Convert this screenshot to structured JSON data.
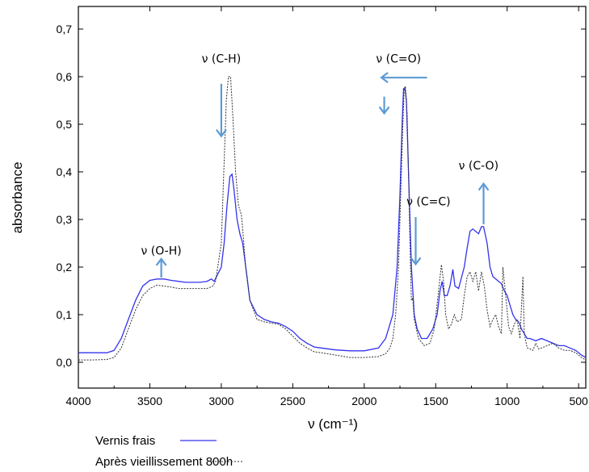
{
  "chart_data": {
    "type": "line",
    "xlabel": "ν (cm⁻¹)",
    "ylabel": "absorbance",
    "xlim": [
      4000,
      450
    ],
    "ylim": [
      -0.05,
      0.75
    ],
    "x_reversed": true,
    "x_ticks": [
      4000,
      3500,
      3000,
      2500,
      2000,
      1500,
      1000,
      500
    ],
    "x_tick_labels": [
      "4000",
      "3500",
      "3000",
      "2500",
      "2000",
      "1500",
      "1000",
      "500"
    ],
    "y_ticks": [
      0.0,
      0.1,
      0.2,
      0.3,
      0.4,
      0.5,
      0.6,
      0.7
    ],
    "y_tick_labels": [
      "0,0",
      "0,1",
      "0,2",
      "0,3",
      "0,4",
      "0,5",
      "0,6",
      "0,7"
    ],
    "grid": false,
    "legend_position": "bottom-left",
    "series": [
      {
        "name": "Vernis frais",
        "color": "#3333ee",
        "style": "solid",
        "points": [
          [
            4000,
            0.02
          ],
          [
            3900,
            0.02
          ],
          [
            3800,
            0.02
          ],
          [
            3750,
            0.025
          ],
          [
            3700,
            0.05
          ],
          [
            3650,
            0.09
          ],
          [
            3600,
            0.13
          ],
          [
            3550,
            0.16
          ],
          [
            3500,
            0.172
          ],
          [
            3450,
            0.175
          ],
          [
            3400,
            0.175
          ],
          [
            3350,
            0.172
          ],
          [
            3300,
            0.17
          ],
          [
            3250,
            0.168
          ],
          [
            3200,
            0.168
          ],
          [
            3150,
            0.168
          ],
          [
            3100,
            0.17
          ],
          [
            3070,
            0.175
          ],
          [
            3050,
            0.17
          ],
          [
            3000,
            0.2
          ],
          [
            2980,
            0.25
          ],
          [
            2960,
            0.33
          ],
          [
            2940,
            0.39
          ],
          [
            2925,
            0.395
          ],
          [
            2910,
            0.36
          ],
          [
            2890,
            0.3
          ],
          [
            2870,
            0.27
          ],
          [
            2850,
            0.25
          ],
          [
            2820,
            0.18
          ],
          [
            2800,
            0.13
          ],
          [
            2750,
            0.1
          ],
          [
            2700,
            0.09
          ],
          [
            2650,
            0.085
          ],
          [
            2600,
            0.082
          ],
          [
            2550,
            0.075
          ],
          [
            2500,
            0.065
          ],
          [
            2450,
            0.05
          ],
          [
            2400,
            0.04
          ],
          [
            2350,
            0.032
          ],
          [
            2300,
            0.03
          ],
          [
            2200,
            0.026
          ],
          [
            2100,
            0.024
          ],
          [
            2000,
            0.024
          ],
          [
            1900,
            0.03
          ],
          [
            1850,
            0.05
          ],
          [
            1800,
            0.1
          ],
          [
            1770,
            0.2
          ],
          [
            1750,
            0.35
          ],
          [
            1735,
            0.5
          ],
          [
            1725,
            0.575
          ],
          [
            1715,
            0.575
          ],
          [
            1705,
            0.55
          ],
          [
            1690,
            0.4
          ],
          [
            1670,
            0.2
          ],
          [
            1650,
            0.1
          ],
          [
            1630,
            0.07
          ],
          [
            1600,
            0.05
          ],
          [
            1560,
            0.05
          ],
          [
            1520,
            0.07
          ],
          [
            1490,
            0.1
          ],
          [
            1470,
            0.15
          ],
          [
            1455,
            0.17
          ],
          [
            1440,
            0.14
          ],
          [
            1420,
            0.14
          ],
          [
            1400,
            0.16
          ],
          [
            1380,
            0.195
          ],
          [
            1365,
            0.16
          ],
          [
            1340,
            0.155
          ],
          [
            1300,
            0.2
          ],
          [
            1280,
            0.24
          ],
          [
            1260,
            0.275
          ],
          [
            1240,
            0.28
          ],
          [
            1220,
            0.275
          ],
          [
            1200,
            0.27
          ],
          [
            1180,
            0.285
          ],
          [
            1165,
            0.285
          ],
          [
            1140,
            0.25
          ],
          [
            1120,
            0.2
          ],
          [
            1100,
            0.18
          ],
          [
            1080,
            0.175
          ],
          [
            1060,
            0.17
          ],
          [
            1040,
            0.165
          ],
          [
            1020,
            0.15
          ],
          [
            1000,
            0.14
          ],
          [
            980,
            0.12
          ],
          [
            960,
            0.1
          ],
          [
            940,
            0.09
          ],
          [
            920,
            0.085
          ],
          [
            900,
            0.07
          ],
          [
            880,
            0.06
          ],
          [
            860,
            0.05
          ],
          [
            840,
            0.05
          ],
          [
            800,
            0.045
          ],
          [
            760,
            0.05
          ],
          [
            720,
            0.045
          ],
          [
            680,
            0.04
          ],
          [
            640,
            0.035
          ],
          [
            600,
            0.035
          ],
          [
            560,
            0.03
          ],
          [
            520,
            0.025
          ],
          [
            480,
            0.015
          ],
          [
            450,
            0.01
          ]
        ]
      },
      {
        "name": "Après vieillissement 800h",
        "color": "#333333",
        "style": "dotted",
        "points": [
          [
            4000,
            0.005
          ],
          [
            3900,
            0.005
          ],
          [
            3800,
            0.006
          ],
          [
            3750,
            0.01
          ],
          [
            3700,
            0.03
          ],
          [
            3650,
            0.07
          ],
          [
            3600,
            0.11
          ],
          [
            3550,
            0.14
          ],
          [
            3500,
            0.155
          ],
          [
            3450,
            0.162
          ],
          [
            3400,
            0.16
          ],
          [
            3350,
            0.158
          ],
          [
            3300,
            0.155
          ],
          [
            3250,
            0.155
          ],
          [
            3200,
            0.155
          ],
          [
            3150,
            0.155
          ],
          [
            3100,
            0.155
          ],
          [
            3060,
            0.16
          ],
          [
            3040,
            0.17
          ],
          [
            3000,
            0.25
          ],
          [
            2980,
            0.42
          ],
          [
            2965,
            0.55
          ],
          [
            2950,
            0.6
          ],
          [
            2935,
            0.6
          ],
          [
            2920,
            0.52
          ],
          [
            2900,
            0.4
          ],
          [
            2880,
            0.33
          ],
          [
            2860,
            0.31
          ],
          [
            2850,
            0.28
          ],
          [
            2830,
            0.2
          ],
          [
            2800,
            0.13
          ],
          [
            2750,
            0.09
          ],
          [
            2700,
            0.085
          ],
          [
            2650,
            0.082
          ],
          [
            2600,
            0.08
          ],
          [
            2550,
            0.07
          ],
          [
            2500,
            0.055
          ],
          [
            2450,
            0.04
          ],
          [
            2400,
            0.03
          ],
          [
            2350,
            0.022
          ],
          [
            2300,
            0.02
          ],
          [
            2200,
            0.015
          ],
          [
            2100,
            0.01
          ],
          [
            2000,
            0.01
          ],
          [
            1900,
            0.012
          ],
          [
            1850,
            0.018
          ],
          [
            1820,
            0.03
          ],
          [
            1800,
            0.05
          ],
          [
            1780,
            0.1
          ],
          [
            1760,
            0.2
          ],
          [
            1745,
            0.35
          ],
          [
            1730,
            0.5
          ],
          [
            1720,
            0.575
          ],
          [
            1712,
            0.58
          ],
          [
            1700,
            0.52
          ],
          [
            1690,
            0.4
          ],
          [
            1680,
            0.25
          ],
          [
            1670,
            0.13
          ],
          [
            1660,
            0.135
          ],
          [
            1650,
            0.09
          ],
          [
            1620,
            0.05
          ],
          [
            1580,
            0.035
          ],
          [
            1540,
            0.04
          ],
          [
            1510,
            0.07
          ],
          [
            1480,
            0.15
          ],
          [
            1460,
            0.205
          ],
          [
            1445,
            0.17
          ],
          [
            1430,
            0.1
          ],
          [
            1410,
            0.07
          ],
          [
            1390,
            0.08
          ],
          [
            1370,
            0.1
          ],
          [
            1350,
            0.085
          ],
          [
            1320,
            0.09
          ],
          [
            1300,
            0.14
          ],
          [
            1280,
            0.18
          ],
          [
            1260,
            0.19
          ],
          [
            1240,
            0.17
          ],
          [
            1220,
            0.19
          ],
          [
            1200,
            0.15
          ],
          [
            1180,
            0.19
          ],
          [
            1160,
            0.16
          ],
          [
            1140,
            0.11
          ],
          [
            1120,
            0.075
          ],
          [
            1100,
            0.09
          ],
          [
            1080,
            0.1
          ],
          [
            1060,
            0.075
          ],
          [
            1040,
            0.06
          ],
          [
            1030,
            0.2
          ],
          [
            1010,
            0.14
          ],
          [
            990,
            0.075
          ],
          [
            970,
            0.06
          ],
          [
            950,
            0.08
          ],
          [
            930,
            0.09
          ],
          [
            910,
            0.05
          ],
          [
            890,
            0.18
          ],
          [
            880,
            0.06
          ],
          [
            860,
            0.03
          ],
          [
            840,
            0.028
          ],
          [
            820,
            0.025
          ],
          [
            800,
            0.04
          ],
          [
            780,
            0.028
          ],
          [
            760,
            0.03
          ],
          [
            720,
            0.035
          ],
          [
            680,
            0.04
          ],
          [
            640,
            0.03
          ],
          [
            600,
            0.025
          ],
          [
            560,
            0.025
          ],
          [
            520,
            0.02
          ],
          [
            480,
            0.01
          ],
          [
            450,
            0.005
          ]
        ]
      }
    ],
    "annotations": [
      {
        "label": "ν (O-H)",
        "x": 3420,
        "y": 0.226,
        "arrow": "up",
        "arrow_from": 0.178,
        "arrow_to": 0.217
      },
      {
        "label": "ν (C-H)",
        "x": 3000,
        "y": 0.63,
        "arrow": "down",
        "arrow_from": 0.585,
        "arrow_to": 0.475
      },
      {
        "label": "ν (C=O)",
        "x": 1760,
        "y": 0.63,
        "arrow": "left",
        "arrow_at": 0.598,
        "arrow_x_from": 1560,
        "arrow_x_to": 1880,
        "second_arrow": "down",
        "second_x": 1860,
        "second_from": 0.558,
        "second_to": 0.523
      },
      {
        "label": "ν (C=C)",
        "x": 1550,
        "y": 0.33,
        "arrow": "down",
        "arrow_x": 1640,
        "arrow_from": 0.305,
        "arrow_to": 0.206
      },
      {
        "label": "ν (C-O)",
        "x": 1200,
        "y": 0.405,
        "arrow": "up",
        "arrow_x": 1165,
        "arrow_from": 0.29,
        "arrow_to": 0.375
      }
    ],
    "annotation_arrow_color": "#5b9bd5"
  }
}
